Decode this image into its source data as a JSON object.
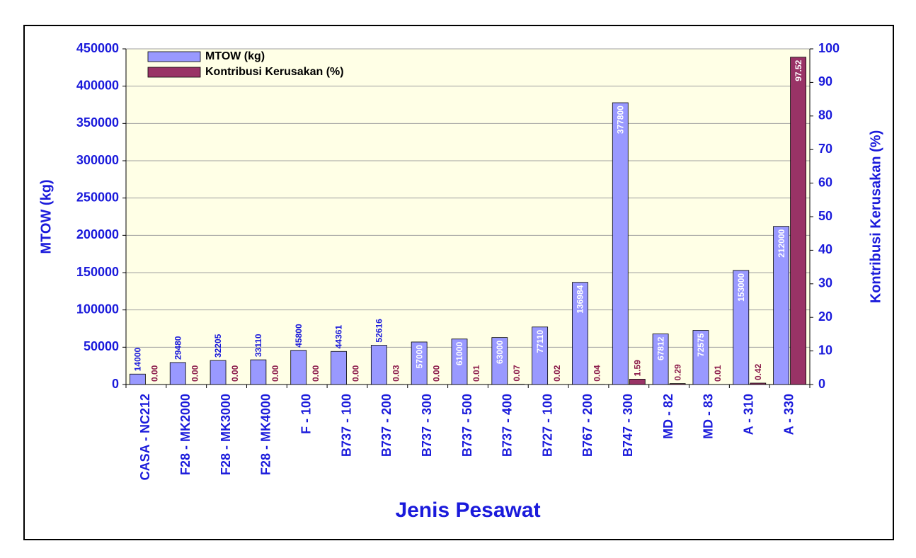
{
  "chart_data": {
    "type": "bar",
    "x_label": "Jenis Pesawat",
    "y_label": "MTOW (kg)",
    "y2_label": "Kontribusi Kerusakan (%)",
    "categories": [
      "CASA - NC212",
      "F28 - MK2000",
      "F28 - MK3000",
      "F28 - MK4000",
      "F - 100",
      "B737 - 100",
      "B737 - 200",
      "B737 - 300",
      "B737 - 500",
      "B737 - 400",
      "B727 - 100",
      "B767 - 200",
      "B747 - 300",
      "MD - 82",
      "MD - 83",
      "A - 310",
      "A - 330"
    ],
    "series": [
      {
        "name": "MTOW (kg)",
        "color": "#9999ff",
        "axis": "y",
        "values": [
          14000,
          29480,
          32205,
          33110,
          45800,
          44361,
          52616,
          57000,
          61000,
          63000,
          77110,
          136984,
          377800,
          67812,
          72575,
          153000,
          212000
        ]
      },
      {
        "name": "Kontribusi Kerusakan (%)",
        "color": "#993366",
        "axis": "y2",
        "values": [
          0,
          0,
          0,
          0,
          0,
          0,
          0.03,
          0,
          0.01,
          0.07,
          0.02,
          0.04,
          1.59,
          0.29,
          0.01,
          0.42,
          97.52
        ],
        "value_labels": [
          "0.00",
          "0.00",
          "0.00",
          "0.00",
          "0.00",
          "0.00",
          "0.03",
          "0.00",
          "0.01",
          "0.07",
          "0.02",
          "0.04",
          "1.59",
          "0.29",
          "0.01",
          "0.42",
          "97.52"
        ]
      }
    ],
    "ylim": [
      0,
      450000
    ],
    "yticks": [
      0,
      50000,
      100000,
      150000,
      200000,
      250000,
      300000,
      350000,
      400000,
      450000
    ],
    "y2lim": [
      0,
      100
    ],
    "y2ticks": [
      0,
      10,
      20,
      30,
      40,
      50,
      60,
      70,
      80,
      90,
      100
    ],
    "grid": true,
    "legend": "upper left"
  }
}
